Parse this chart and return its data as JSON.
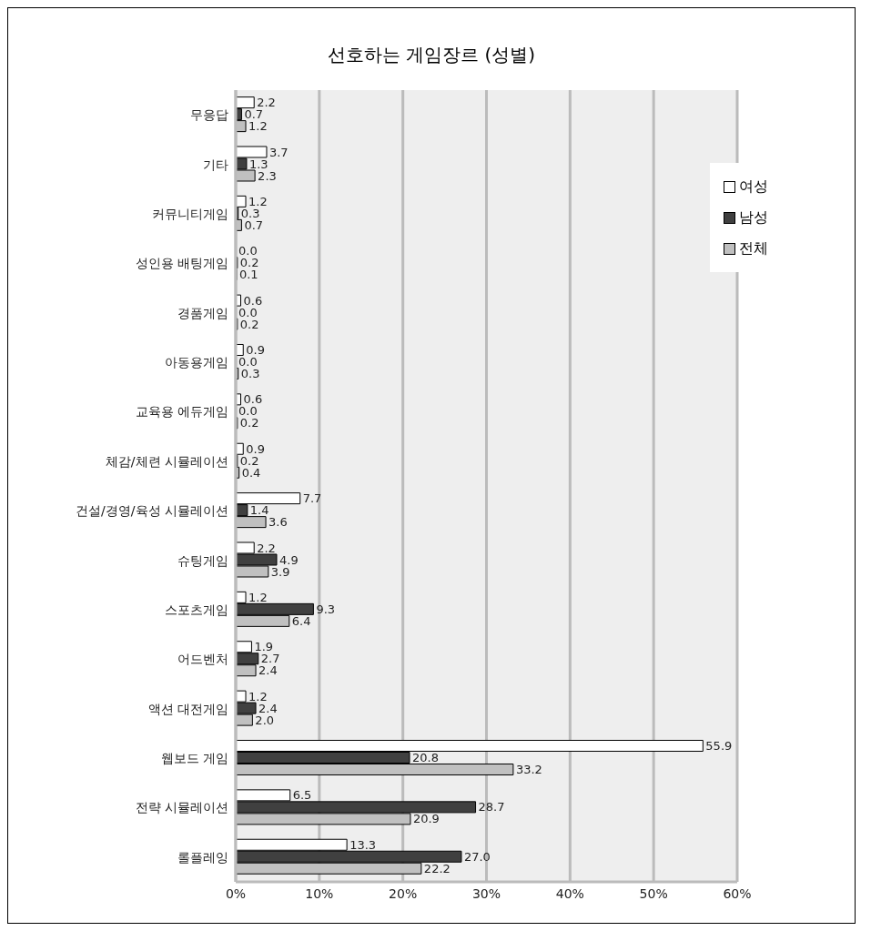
{
  "chart_data": {
    "type": "bar",
    "orientation": "horizontal",
    "title": "선호하는 게임장르 (성별)",
    "categories": [
      "무응답",
      "기타",
      "커뮤니티게임",
      "성인용 배팅게임",
      "경품게임",
      "아동용게임",
      "교육용 에듀게임",
      "체감/체련 시뮬레이션",
      "건설/경영/육성 시뮬레이션",
      "슈팅게임",
      "스포츠게임",
      "어드벤처",
      "액션 대전게임",
      "웹보드 게임",
      "전략 시뮬레이션",
      "롤플레잉"
    ],
    "series": [
      {
        "name": "여성",
        "color": "#ffffff",
        "values": [
          2.2,
          3.7,
          1.2,
          0.0,
          0.6,
          0.9,
          0.6,
          0.9,
          7.7,
          2.2,
          1.2,
          1.9,
          1.2,
          55.9,
          6.5,
          13.3
        ],
        "value_labels": [
          "2.2",
          "3.7",
          "1.2",
          "0.0",
          "0.6",
          "0.9",
          "0.6",
          "0.9",
          "7.7",
          "2.2",
          "1.2",
          "1.9",
          "1.2",
          "55.9",
          "6.5",
          "13.3"
        ]
      },
      {
        "name": "남성",
        "color": "#404040",
        "values": [
          0.7,
          1.3,
          0.3,
          0.2,
          0.0,
          0.0,
          0.0,
          0.2,
          1.4,
          4.9,
          9.3,
          2.7,
          2.4,
          20.8,
          28.7,
          27.0
        ],
        "value_labels": [
          "0.7",
          "1.3",
          "0.3",
          "0.2",
          "0.0",
          "0.0",
          "0.0",
          "0.2",
          "1.4",
          "4.9",
          "9.3",
          "2.7",
          "2.4",
          "20.8",
          "28.7",
          "27.0"
        ]
      },
      {
        "name": "전체",
        "color": "#c0c0c0",
        "values": [
          1.2,
          2.3,
          0.7,
          0.1,
          0.2,
          0.3,
          0.2,
          0.4,
          3.6,
          3.9,
          6.4,
          2.4,
          2.0,
          33.2,
          20.9,
          22.2
        ],
        "value_labels": [
          "1.2",
          "2.3",
          "0.7",
          "0.1",
          "0.2",
          "0.3",
          "0.2",
          "0.4",
          "3.6",
          "3.9",
          "6.4",
          "2.4",
          "2.0",
          "33.2",
          "20.9",
          "22.2"
        ]
      }
    ],
    "xlim": [
      0,
      60
    ],
    "xticks": [
      {
        "value": 0,
        "label": "0%"
      },
      {
        "value": 10,
        "label": "10%"
      },
      {
        "value": 20,
        "label": "20%"
      },
      {
        "value": 30,
        "label": "30%"
      },
      {
        "value": 40,
        "label": "40%"
      },
      {
        "value": 50,
        "label": "50%"
      },
      {
        "value": 60,
        "label": "60%"
      }
    ],
    "grid": "x",
    "legend": "top right"
  }
}
